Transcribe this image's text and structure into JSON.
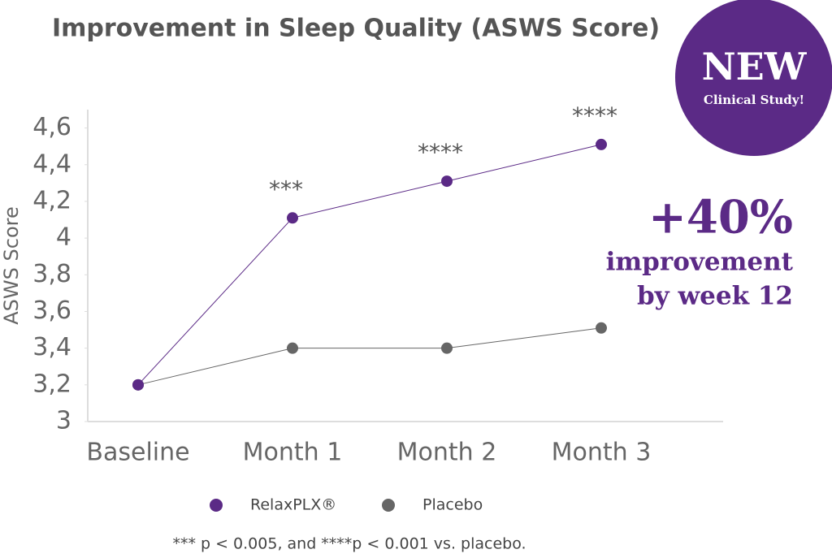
{
  "chart_data": {
    "type": "line",
    "title": "Improvement in Sleep Quality (ASWS Score)",
    "y_label": "ASWS Score",
    "categories": [
      "Baseline",
      "Month 1",
      "Month 2",
      "Month 3"
    ],
    "series": [
      {
        "name": "RelaxPLX®",
        "color": "#5b2a86",
        "values": [
          3.2,
          4.11,
          4.31,
          4.51
        ]
      },
      {
        "name": "Placebo",
        "color": "#666666",
        "values": [
          3.2,
          3.4,
          3.4,
          3.51
        ]
      }
    ],
    "annotations": [
      null,
      "***",
      "****",
      "****"
    ],
    "ylim": [
      3,
      4.7
    ],
    "yticks": [
      3,
      {
        "value": 3.2,
        "label": "3,2"
      },
      {
        "value": 3.4,
        "label": "3,4"
      },
      {
        "value": 3.6,
        "label": "3,6"
      },
      {
        "value": 3.8,
        "label": "3,8"
      },
      4,
      {
        "value": 4.2,
        "label": "4,2"
      },
      {
        "value": 4.4,
        "label": "4,4"
      },
      {
        "value": 4.6,
        "label": "4,6"
      }
    ],
    "badge": {
      "title": "NEW",
      "subtitle": "Clinical Study!"
    },
    "callout": {
      "headline": "+40%",
      "line1": "improvement",
      "line2": "by week 12"
    },
    "footnote": "*** p < 0.005,  and ****p < 0.001 vs. placebo."
  }
}
